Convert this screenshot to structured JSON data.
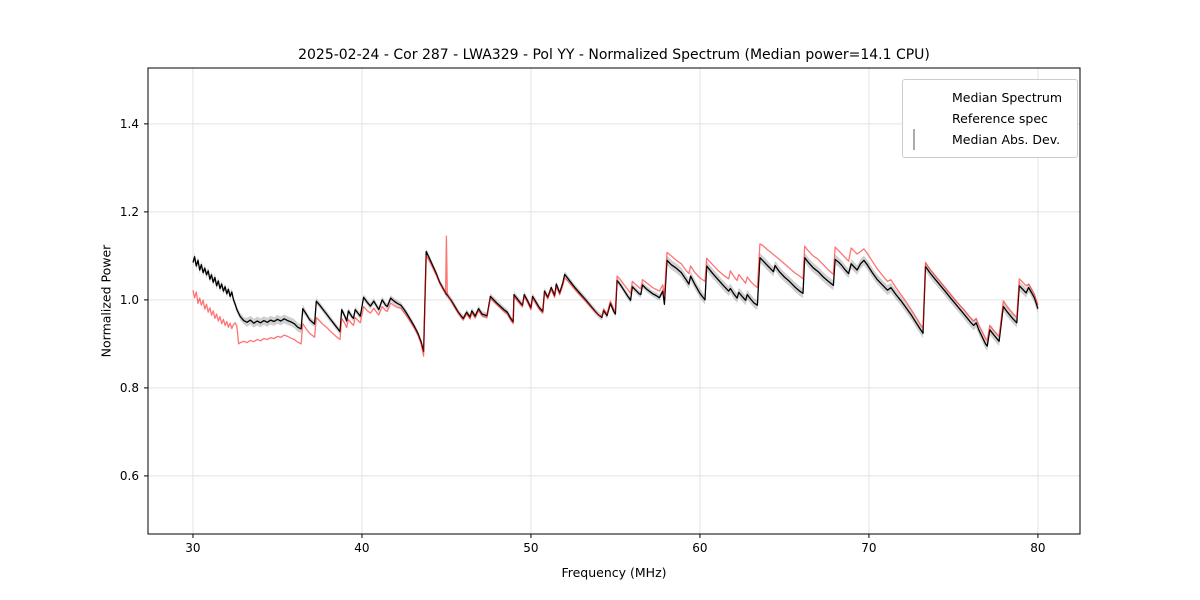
{
  "title": "2025-02-24 - Cor 287 - LWA329 - Pol YY - Normalized Spectrum (Median power=14.1 CPU)",
  "chart_data": {
    "type": "line",
    "title": "2025-02-24 - Cor 287 - LWA329 - Pol YY - Normalized Spectrum (Median power=14.1 CPU)",
    "xlabel": "Frequency (MHz)",
    "ylabel": "Normalized Power",
    "xlim": [
      27.34,
      82.49
    ],
    "ylim": [
      0.468,
      1.527
    ],
    "xticks": [
      {
        "v": 30,
        "label": "30"
      },
      {
        "v": 40,
        "label": "40"
      },
      {
        "v": 50,
        "label": "50"
      },
      {
        "v": 60,
        "label": "60"
      },
      {
        "v": 70,
        "label": "70"
      },
      {
        "v": 80,
        "label": "80"
      }
    ],
    "yticks": [
      {
        "v": 0.6,
        "label": "0.6"
      },
      {
        "v": 0.8,
        "label": "0.8"
      },
      {
        "v": 1.0,
        "label": "1.0"
      },
      {
        "v": 1.2,
        "label": "1.2"
      },
      {
        "v": 1.4,
        "label": "1.4"
      }
    ],
    "grid": true,
    "grid_color": "#e3e3e3",
    "background": "#ffffff",
    "legend": {
      "position": "upper right",
      "entries": [
        {
          "label": "Median Spectrum",
          "swatch": "line",
          "color": "#000000"
        },
        {
          "label": "Reference spec",
          "swatch": "line",
          "color": "rgba(255,0,0,0.55)"
        },
        {
          "label": "Median Abs. Dev.",
          "swatch": "patch",
          "color": "rgba(128,128,128,0.35)"
        }
      ]
    },
    "series": [
      {
        "name": "Median Abs. Dev.",
        "type": "band",
        "around": "Median Spectrum",
        "color": "rgba(85,85,85,0.28)",
        "half_width_regions": [
          {
            "from": 29.9,
            "to": 33.0,
            "half_width": 0.008
          },
          {
            "from": 33.0,
            "to": 36.5,
            "half_width": 0.01
          },
          {
            "from": 36.5,
            "to": 58.0,
            "half_width": 0.007
          },
          {
            "from": 58.0,
            "to": 80.1,
            "half_width": 0.011
          }
        ]
      },
      {
        "name": "Median Spectrum",
        "type": "line",
        "color": "#000000",
        "width": 1.3,
        "value_index": 1
      },
      {
        "name": "Reference spec",
        "type": "line",
        "color": "rgba(255,0,0,0.55)",
        "width": 1.3,
        "value_index": 2
      }
    ],
    "points_format": [
      "frequency_mhz",
      "median_spectrum",
      "reference_spec"
    ],
    "points": [
      [
        30.0,
        1.085,
        1.022
      ],
      [
        30.1,
        1.098,
        1.005
      ],
      [
        30.2,
        1.077,
        1.018
      ],
      [
        30.3,
        1.09,
        0.992
      ],
      [
        30.4,
        1.068,
        1.004
      ],
      [
        30.5,
        1.08,
        0.988
      ],
      [
        30.6,
        1.062,
        0.999
      ],
      [
        30.7,
        1.072,
        0.979
      ],
      [
        30.8,
        1.057,
        0.99
      ],
      [
        30.9,
        1.066,
        0.972
      ],
      [
        31.0,
        1.047,
        0.982
      ],
      [
        31.1,
        1.057,
        0.965
      ],
      [
        31.2,
        1.04,
        0.975
      ],
      [
        31.3,
        1.051,
        0.958
      ],
      [
        31.4,
        1.032,
        0.968
      ],
      [
        31.5,
        1.043,
        0.952
      ],
      [
        31.6,
        1.026,
        0.962
      ],
      [
        31.7,
        1.036,
        0.946
      ],
      [
        31.8,
        1.02,
        0.956
      ],
      [
        31.9,
        1.03,
        0.942
      ],
      [
        32.0,
        1.014,
        0.951
      ],
      [
        32.1,
        1.024,
        0.938
      ],
      [
        32.2,
        1.008,
        0.947
      ],
      [
        32.3,
        1.018,
        0.935
      ],
      [
        32.4,
        1.0,
        0.944
      ],
      [
        32.5,
        0.99,
        0.948
      ],
      [
        32.6,
        0.978,
        0.94
      ],
      [
        32.7,
        0.97,
        0.9
      ],
      [
        32.8,
        0.962,
        0.903
      ],
      [
        33.0,
        0.953,
        0.906
      ],
      [
        33.2,
        0.949,
        0.903
      ],
      [
        33.4,
        0.954,
        0.908
      ],
      [
        33.6,
        0.947,
        0.905
      ],
      [
        33.8,
        0.952,
        0.91
      ],
      [
        34.0,
        0.948,
        0.907
      ],
      [
        34.2,
        0.953,
        0.912
      ],
      [
        34.4,
        0.949,
        0.91
      ],
      [
        34.6,
        0.954,
        0.914
      ],
      [
        34.8,
        0.951,
        0.912
      ],
      [
        35.0,
        0.956,
        0.917
      ],
      [
        35.2,
        0.952,
        0.915
      ],
      [
        35.4,
        0.957,
        0.92
      ],
      [
        35.6,
        0.953,
        0.917
      ],
      [
        35.8,
        0.95,
        0.913
      ],
      [
        36.0,
        0.946,
        0.91
      ],
      [
        36.2,
        0.938,
        0.904
      ],
      [
        36.4,
        0.934,
        0.9
      ],
      [
        36.5,
        0.98,
        0.946
      ],
      [
        36.7,
        0.968,
        0.934
      ],
      [
        36.9,
        0.955,
        0.924
      ],
      [
        37.2,
        0.945,
        0.915
      ],
      [
        37.3,
        0.997,
        0.96
      ],
      [
        37.5,
        0.988,
        0.952
      ],
      [
        37.7,
        0.978,
        0.944
      ],
      [
        37.9,
        0.968,
        0.938
      ],
      [
        38.1,
        0.958,
        0.93
      ],
      [
        38.3,
        0.948,
        0.923
      ],
      [
        38.5,
        0.938,
        0.916
      ],
      [
        38.7,
        0.928,
        0.91
      ],
      [
        38.8,
        0.978,
        0.958
      ],
      [
        39.0,
        0.962,
        0.946
      ],
      [
        39.1,
        0.952,
        0.937
      ],
      [
        39.2,
        0.975,
        0.956
      ],
      [
        39.4,
        0.962,
        0.946
      ],
      [
        39.5,
        0.958,
        0.942
      ],
      [
        39.6,
        0.978,
        0.96
      ],
      [
        39.8,
        0.968,
        0.952
      ],
      [
        39.9,
        0.963,
        0.948
      ],
      [
        40.1,
        1.006,
        0.985
      ],
      [
        40.3,
        0.995,
        0.976
      ],
      [
        40.5,
        0.986,
        0.97
      ],
      [
        40.7,
        0.997,
        0.981
      ],
      [
        40.9,
        0.984,
        0.97
      ],
      [
        41.0,
        0.978,
        0.966
      ],
      [
        41.2,
        1.0,
        0.985
      ],
      [
        41.4,
        0.988,
        0.976
      ],
      [
        41.5,
        0.985,
        0.974
      ],
      [
        41.7,
        1.004,
        0.993
      ],
      [
        41.9,
        0.997,
        0.987
      ],
      [
        42.1,
        0.992,
        0.983
      ],
      [
        42.3,
        0.988,
        0.981
      ],
      [
        42.5,
        0.978,
        0.971
      ],
      [
        42.7,
        0.966,
        0.96
      ],
      [
        42.9,
        0.953,
        0.948
      ],
      [
        43.1,
        0.94,
        0.936
      ],
      [
        43.3,
        0.925,
        0.921
      ],
      [
        43.5,
        0.905,
        0.9
      ],
      [
        43.65,
        0.883,
        0.872
      ],
      [
        43.8,
        1.11,
        1.1
      ],
      [
        44.0,
        1.094,
        1.088
      ],
      [
        44.2,
        1.077,
        1.072
      ],
      [
        44.4,
        1.06,
        1.056
      ],
      [
        44.6,
        1.04,
        1.038
      ],
      [
        44.8,
        1.026,
        1.025
      ],
      [
        44.95,
        1.016,
        1.015
      ],
      [
        45.0,
        1.012,
        1.145
      ],
      [
        45.05,
        1.011,
        1.013
      ],
      [
        45.3,
        0.998,
        0.996
      ],
      [
        45.5,
        0.985,
        0.982
      ],
      [
        45.7,
        0.972,
        0.97
      ],
      [
        45.9,
        0.962,
        0.959
      ],
      [
        46.0,
        0.958,
        0.955
      ],
      [
        46.2,
        0.972,
        0.968
      ],
      [
        46.4,
        0.961,
        0.957
      ],
      [
        46.5,
        0.975,
        0.971
      ],
      [
        46.7,
        0.963,
        0.959
      ],
      [
        46.9,
        0.98,
        0.976
      ],
      [
        47.1,
        0.968,
        0.964
      ],
      [
        47.4,
        0.964,
        0.96
      ],
      [
        47.6,
        1.008,
        1.004
      ],
      [
        47.8,
        1.0,
        0.996
      ],
      [
        48.0,
        0.992,
        0.989
      ],
      [
        48.2,
        0.985,
        0.982
      ],
      [
        48.4,
        0.978,
        0.974
      ],
      [
        48.6,
        0.972,
        0.968
      ],
      [
        48.8,
        0.958,
        0.954
      ],
      [
        48.95,
        0.95,
        0.947
      ],
      [
        49.0,
        1.012,
        1.008
      ],
      [
        49.2,
        1.002,
        0.998
      ],
      [
        49.4,
        0.992,
        0.989
      ],
      [
        49.5,
        0.988,
        0.985
      ],
      [
        49.6,
        1.012,
        1.008
      ],
      [
        49.8,
        0.998,
        0.994
      ],
      [
        50.0,
        0.982,
        0.978
      ],
      [
        50.1,
        1.008,
        1.004
      ],
      [
        50.3,
        0.995,
        0.991
      ],
      [
        50.5,
        0.982,
        0.978
      ],
      [
        50.7,
        0.974,
        0.97
      ],
      [
        50.8,
        1.02,
        1.016
      ],
      [
        51.0,
        1.006,
        1.003
      ],
      [
        51.2,
        1.028,
        1.024
      ],
      [
        51.4,
        1.01,
        1.006
      ],
      [
        51.5,
        1.036,
        1.03
      ],
      [
        51.7,
        1.016,
        1.012
      ],
      [
        51.9,
        1.04,
        1.034
      ],
      [
        52.0,
        1.058,
        1.05
      ],
      [
        52.2,
        1.048,
        1.042
      ],
      [
        52.4,
        1.038,
        1.033
      ],
      [
        52.6,
        1.028,
        1.024
      ],
      [
        52.9,
        1.015,
        1.011
      ],
      [
        53.2,
        1.002,
        0.999
      ],
      [
        53.5,
        0.988,
        0.986
      ],
      [
        53.8,
        0.974,
        0.973
      ],
      [
        54.0,
        0.966,
        0.966
      ],
      [
        54.2,
        0.96,
        0.962
      ],
      [
        54.3,
        0.976,
        0.979
      ],
      [
        54.5,
        0.964,
        0.968
      ],
      [
        54.7,
        0.992,
        0.997
      ],
      [
        54.9,
        0.974,
        0.98
      ],
      [
        55.0,
        0.968,
        0.975
      ],
      [
        55.1,
        1.044,
        1.054
      ],
      [
        55.3,
        1.034,
        1.046
      ],
      [
        55.5,
        1.022,
        1.035
      ],
      [
        55.7,
        1.01,
        1.025
      ],
      [
        55.9,
        0.999,
        1.015
      ],
      [
        56.0,
        1.03,
        1.042
      ],
      [
        56.2,
        1.022,
        1.035
      ],
      [
        56.4,
        1.014,
        1.028
      ],
      [
        56.5,
        1.012,
        1.025
      ],
      [
        56.6,
        1.034,
        1.046
      ],
      [
        56.8,
        1.026,
        1.04
      ],
      [
        57.0,
        1.02,
        1.034
      ],
      [
        57.2,
        1.014,
        1.028
      ],
      [
        57.4,
        1.01,
        1.024
      ],
      [
        57.6,
        1.005,
        1.02
      ],
      [
        57.8,
        1.02,
        1.034
      ],
      [
        57.9,
        0.99,
        1.008
      ],
      [
        58.05,
        1.09,
        1.108
      ],
      [
        58.3,
        1.08,
        1.1
      ],
      [
        58.6,
        1.072,
        1.09
      ],
      [
        58.9,
        1.062,
        1.082
      ],
      [
        59.2,
        1.045,
        1.066
      ],
      [
        59.35,
        1.036,
        1.06
      ],
      [
        59.45,
        1.054,
        1.077
      ],
      [
        59.7,
        1.035,
        1.062
      ],
      [
        60.0,
        1.015,
        1.05
      ],
      [
        60.3,
        1.0,
        1.042
      ],
      [
        60.4,
        1.077,
        1.095
      ],
      [
        60.5,
        1.072,
        1.09
      ],
      [
        60.8,
        1.058,
        1.078
      ],
      [
        61.1,
        1.045,
        1.066
      ],
      [
        61.4,
        1.032,
        1.056
      ],
      [
        61.7,
        1.02,
        1.048
      ],
      [
        61.8,
        1.026,
        1.066
      ],
      [
        62.0,
        1.014,
        1.054
      ],
      [
        62.2,
        1.004,
        1.044
      ],
      [
        62.3,
        1.017,
        1.058
      ],
      [
        62.5,
        1.008,
        1.048
      ],
      [
        62.7,
        0.999,
        1.038
      ],
      [
        62.8,
        1.012,
        1.052
      ],
      [
        63.0,
        1.002,
        1.042
      ],
      [
        63.2,
        0.993,
        1.034
      ],
      [
        63.4,
        0.988,
        1.028
      ],
      [
        63.55,
        1.096,
        1.127
      ],
      [
        63.7,
        1.09,
        1.124
      ],
      [
        64.0,
        1.078,
        1.114
      ],
      [
        64.2,
        1.07,
        1.108
      ],
      [
        64.35,
        1.064,
        1.103
      ],
      [
        64.45,
        1.078,
        1.1
      ],
      [
        64.7,
        1.064,
        1.092
      ],
      [
        65.0,
        1.052,
        1.082
      ],
      [
        65.3,
        1.042,
        1.072
      ],
      [
        65.6,
        1.03,
        1.062
      ],
      [
        65.9,
        1.02,
        1.054
      ],
      [
        66.1,
        1.015,
        1.048
      ],
      [
        66.2,
        1.096,
        1.122
      ],
      [
        66.4,
        1.086,
        1.112
      ],
      [
        66.7,
        1.073,
        1.1
      ],
      [
        67.0,
        1.064,
        1.092
      ],
      [
        67.3,
        1.052,
        1.08
      ],
      [
        67.6,
        1.042,
        1.068
      ],
      [
        67.9,
        1.033,
        1.058
      ],
      [
        68.0,
        1.092,
        1.12
      ],
      [
        68.2,
        1.086,
        1.112
      ],
      [
        68.4,
        1.078,
        1.104
      ],
      [
        68.6,
        1.068,
        1.096
      ],
      [
        68.8,
        1.06,
        1.088
      ],
      [
        68.95,
        1.082,
        1.118
      ],
      [
        69.1,
        1.076,
        1.112
      ],
      [
        69.3,
        1.068,
        1.104
      ],
      [
        69.5,
        1.082,
        1.11
      ],
      [
        69.7,
        1.09,
        1.116
      ],
      [
        69.9,
        1.08,
        1.106
      ],
      [
        70.2,
        1.062,
        1.088
      ],
      [
        70.5,
        1.046,
        1.07
      ],
      [
        70.8,
        1.034,
        1.056
      ],
      [
        71.1,
        1.022,
        1.042
      ],
      [
        71.3,
        1.028,
        1.046
      ],
      [
        71.6,
        1.012,
        1.028
      ],
      [
        71.9,
        0.998,
        1.012
      ],
      [
        72.2,
        0.982,
        0.996
      ],
      [
        72.5,
        0.966,
        0.978
      ],
      [
        72.8,
        0.948,
        0.96
      ],
      [
        73.0,
        0.936,
        0.947
      ],
      [
        73.2,
        0.924,
        0.936
      ],
      [
        73.35,
        1.076,
        1.085
      ],
      [
        73.6,
        1.062,
        1.07
      ],
      [
        73.9,
        1.048,
        1.056
      ],
      [
        74.2,
        1.034,
        1.042
      ],
      [
        74.5,
        1.02,
        1.028
      ],
      [
        74.8,
        1.006,
        1.014
      ],
      [
        75.1,
        0.992,
        1.0
      ],
      [
        75.4,
        0.978,
        0.987
      ],
      [
        75.7,
        0.964,
        0.974
      ],
      [
        76.0,
        0.95,
        0.96
      ],
      [
        76.2,
        0.942,
        0.952
      ],
      [
        76.35,
        0.948,
        0.958
      ],
      [
        76.5,
        0.932,
        0.943
      ],
      [
        76.7,
        0.916,
        0.928
      ],
      [
        76.9,
        0.9,
        0.913
      ],
      [
        77.0,
        0.895,
        0.908
      ],
      [
        77.15,
        0.932,
        0.942
      ],
      [
        77.4,
        0.92,
        0.93
      ],
      [
        77.7,
        0.906,
        0.917
      ],
      [
        77.95,
        0.985,
        0.998
      ],
      [
        78.2,
        0.972,
        0.984
      ],
      [
        78.5,
        0.958,
        0.97
      ],
      [
        78.75,
        0.948,
        0.96
      ],
      [
        78.9,
        1.032,
        1.048
      ],
      [
        79.1,
        1.024,
        1.04
      ],
      [
        79.3,
        1.016,
        1.032
      ],
      [
        79.45,
        1.028,
        1.036
      ],
      [
        79.6,
        1.018,
        1.026
      ],
      [
        79.8,
        1.004,
        1.012
      ],
      [
        80.0,
        0.98,
        0.988
      ]
    ]
  }
}
